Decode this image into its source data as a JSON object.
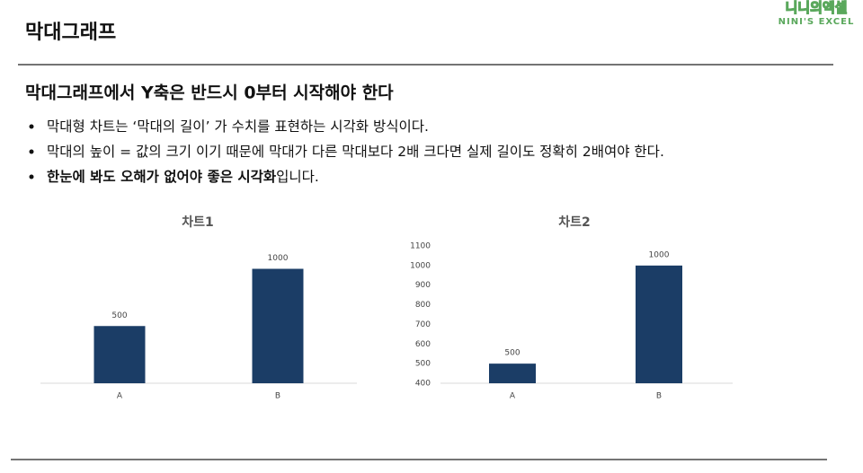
{
  "title": "막대그래프",
  "logo": {
    "main": "니니의엑셀",
    "sub": "NINI'S EXCEL"
  },
  "heading": "막대그래프에서 Y축은 반드시 0부터 시작해야 한다",
  "bullets": [
    [
      {
        "text": "막대형 차트는 ‘막대의 길이’ 가 수치를 표현하는 시각화 방식이다.",
        "bold": false
      }
    ],
    [
      {
        "text": "막대의 높이 = 값의 크기 이기 때문에 막대가 다른 막대보다 2배 크다면 실제 길이도 정확히 2배여야 한다.",
        "bold": false
      }
    ],
    [
      {
        "text": "한눈에 봐도 오해가 없어야 좋은 시각화",
        "bold": true
      },
      {
        "text": "입니다.",
        "bold": false
      }
    ]
  ],
  "chart_data": [
    {
      "type": "bar",
      "title": "차트1",
      "categories": [
        "A",
        "B"
      ],
      "values": [
        500,
        1000
      ],
      "color": "#1b3d66",
      "ylim": [
        0,
        1200
      ],
      "show_y_axis": false
    },
    {
      "type": "bar",
      "title": "차트2",
      "categories": [
        "A",
        "B"
      ],
      "values": [
        500,
        1000
      ],
      "color": "#1b3d66",
      "ylim": [
        400,
        1100
      ],
      "yticks": [
        400,
        500,
        600,
        700,
        800,
        900,
        1000,
        1100
      ],
      "show_y_axis": true
    }
  ]
}
